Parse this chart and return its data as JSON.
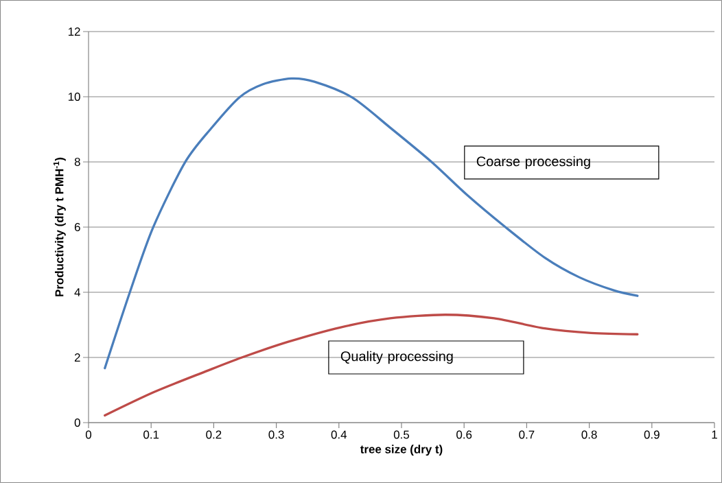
{
  "chart_data": {
    "type": "line",
    "xlabel": "tree size (dry t)",
    "ylabel": "Productivity (dry t PMH$^{-1}$)",
    "xlim": [
      0,
      1
    ],
    "ylim": [
      0,
      12
    ],
    "xticks": [
      0,
      0.1,
      0.2,
      0.3,
      0.4,
      0.5,
      0.6,
      0.7,
      0.8,
      0.9,
      1
    ],
    "yticks": [
      0,
      2,
      4,
      6,
      8,
      10,
      12
    ],
    "grid": "y",
    "marker": "none",
    "line_style": "solid",
    "series": [
      {
        "name": "Coarse processing",
        "color": "#4a7ebb",
        "x": [
          0.026,
          0.066,
          0.103,
          0.154,
          0.196,
          0.241,
          0.278,
          0.324,
          0.361,
          0.421,
          0.482,
          0.548,
          0.604,
          0.666,
          0.729,
          0.784,
          0.839,
          0.877
        ],
        "values": [
          1.67,
          4.0,
          5.98,
          7.98,
          9.03,
          9.98,
          10.38,
          10.56,
          10.46,
          9.98,
          9.05,
          8.0,
          7.0,
          6.0,
          5.06,
          4.46,
          4.06,
          3.89
        ]
      },
      {
        "name": "Quality processing",
        "color": "#be4b48",
        "x": [
          0.026,
          0.105,
          0.187,
          0.245,
          0.319,
          0.402,
          0.482,
          0.57,
          0.648,
          0.729,
          0.803,
          0.877
        ],
        "values": [
          0.22,
          0.94,
          1.57,
          2.0,
          2.48,
          2.92,
          3.2,
          3.31,
          3.2,
          2.89,
          2.75,
          2.71
        ]
      }
    ]
  }
}
